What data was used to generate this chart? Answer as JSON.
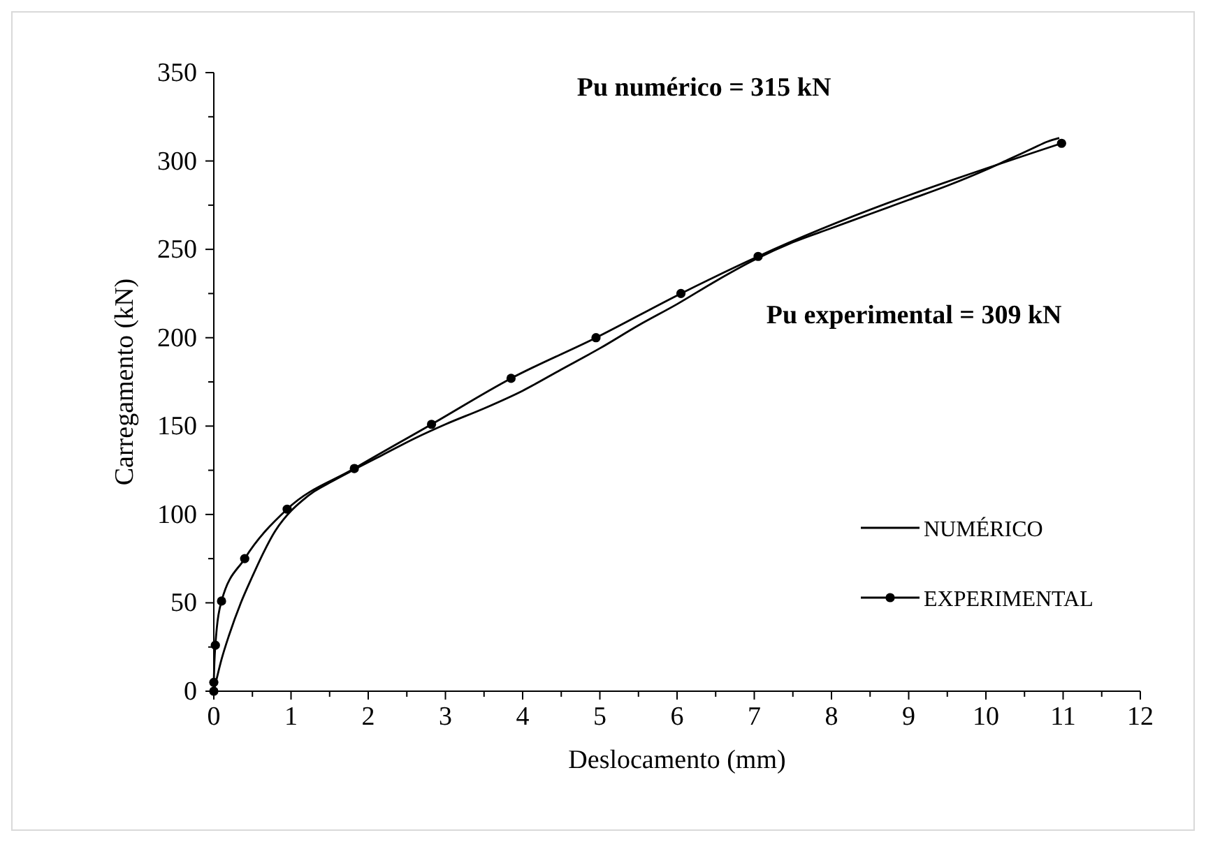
{
  "chart_data": {
    "type": "line",
    "xlabel": "Deslocamento (mm)",
    "ylabel": "Carregamento (kN)",
    "xlim": [
      0,
      12
    ],
    "xticks": [
      0,
      1,
      2,
      3,
      4,
      5,
      6,
      7,
      8,
      9,
      10,
      11,
      12
    ],
    "ylim": [
      0,
      350
    ],
    "yticks": [
      0,
      50,
      100,
      150,
      200,
      250,
      300,
      350
    ],
    "grid": false,
    "legend": "right",
    "annotations": [
      "Pu numérico = 315 kN",
      "Pu experimental = 309 kN"
    ],
    "series": [
      {
        "name": "NUMÉRICO",
        "color": "#000000",
        "marker": "none",
        "x": [
          0,
          0.1,
          0.2,
          0.35,
          0.5,
          0.65,
          0.8,
          0.9,
          1,
          1.15,
          1.3,
          1.5,
          1.8,
          2.2,
          2.6,
          3,
          3.5,
          4,
          4.5,
          5,
          5.5,
          6,
          6.5,
          7,
          7.5,
          8,
          8.5,
          9,
          9.5,
          10,
          10.3,
          10.6,
          10.8,
          10.95
        ],
        "values": [
          0,
          18,
          32,
          50,
          65,
          79,
          91,
          97,
          102,
          108,
          113,
          118,
          125,
          134,
          143,
          151,
          160,
          170,
          182,
          194,
          207,
          219,
          232,
          244,
          254,
          262,
          270,
          278,
          286,
          295,
          301,
          307,
          311,
          313
        ]
      },
      {
        "name": "EXPERIMENTAL",
        "color": "#000000",
        "marker": "circle",
        "x": [
          0,
          0,
          0.02,
          0.1,
          0.4,
          0.95,
          1.82,
          2.82,
          3.85,
          4.95,
          6.05,
          7.05,
          10.98
        ],
        "values": [
          0,
          5,
          26,
          51,
          75,
          103,
          126,
          151,
          177,
          200,
          225,
          246,
          310
        ]
      }
    ]
  }
}
